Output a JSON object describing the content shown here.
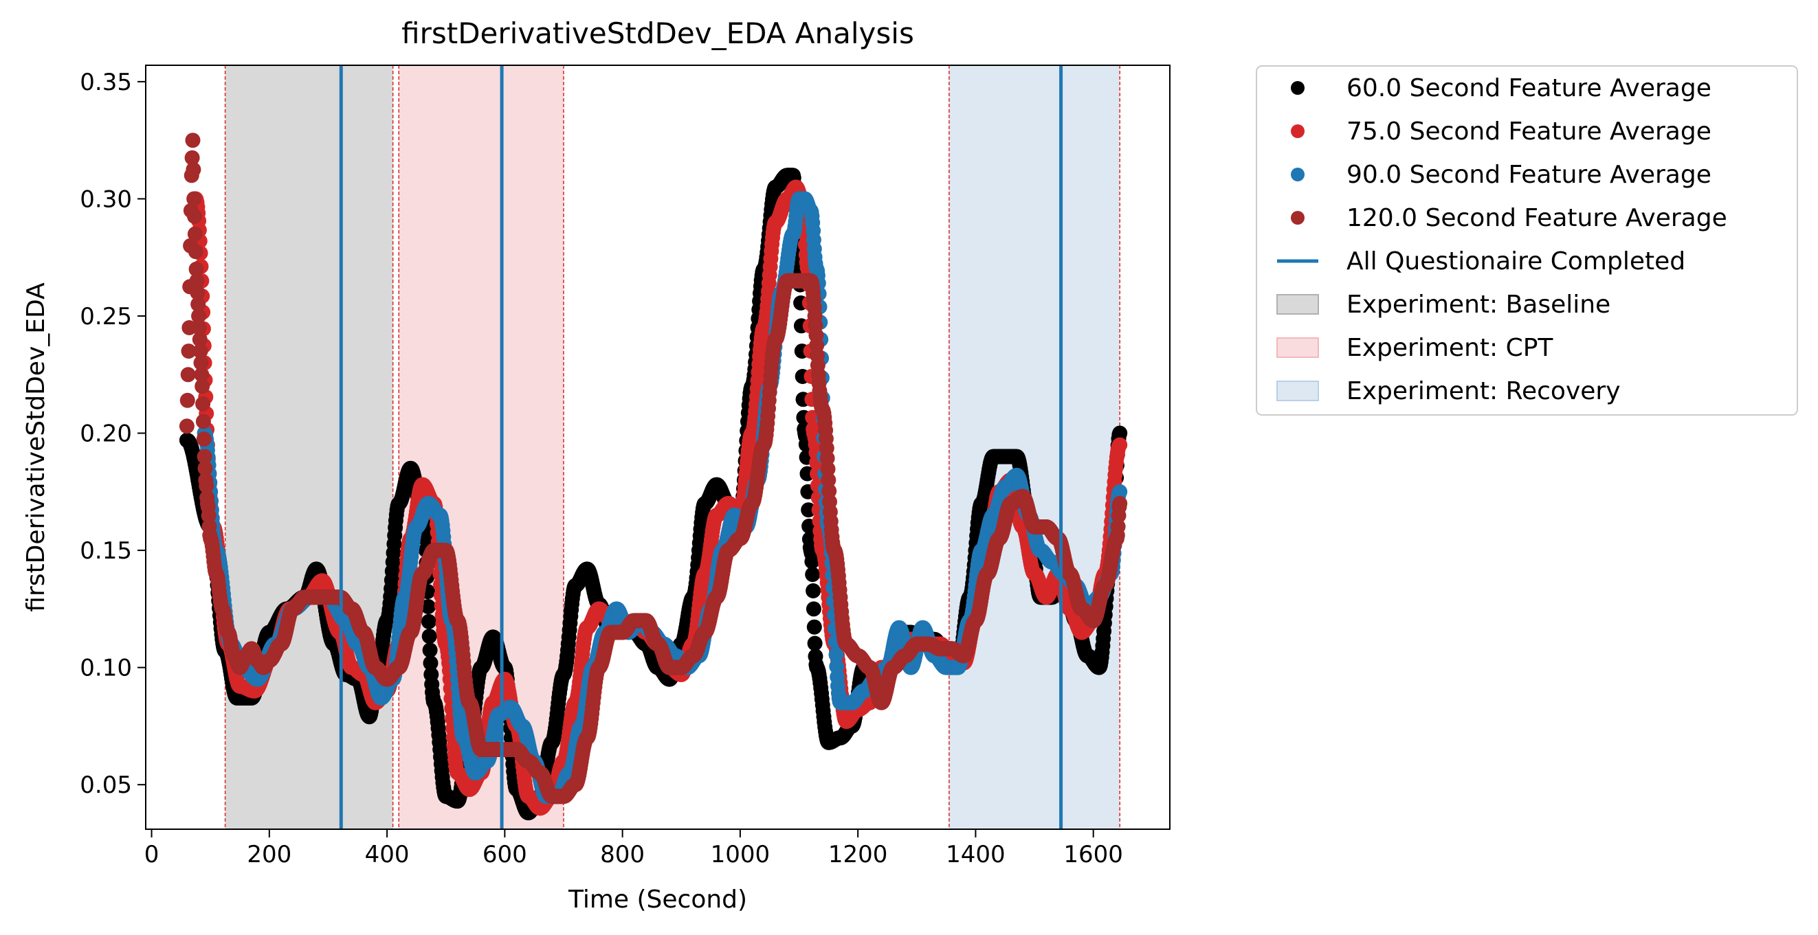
{
  "chart_data": {
    "type": "scatter",
    "title": "firstDerivativeStdDev_EDA Analysis",
    "xlabel": "Time (Second)",
    "ylabel": "firstDerivativeStdDev_EDA",
    "xlim": [
      -10,
      1730
    ],
    "ylim": [
      0.031,
      0.357
    ],
    "x_ticks": [
      0,
      200,
      400,
      600,
      800,
      1000,
      1200,
      1400,
      1600
    ],
    "y_ticks": [
      0.05,
      0.1,
      0.15,
      0.2,
      0.25,
      0.3,
      0.35
    ],
    "grid": false,
    "legend_position": "outside-right-top",
    "series": [
      {
        "name": "60.0 Second Feature Average",
        "color": "#000000",
        "x": [
          60,
          100,
          125,
          145,
          170,
          200,
          230,
          260,
          280,
          310,
          330,
          350,
          370,
          380,
          400,
          420,
          440,
          460,
          480,
          500,
          520,
          540,
          560,
          580,
          600,
          620,
          640,
          660,
          680,
          700,
          720,
          740,
          760,
          780,
          800,
          820,
          840,
          860,
          880,
          900,
          920,
          940,
          960,
          980,
          1000,
          1020,
          1040,
          1060,
          1080,
          1090,
          1100,
          1110,
          1120,
          1130,
          1150,
          1170,
          1190,
          1210,
          1230,
          1250,
          1270,
          1290,
          1310,
          1330,
          1350,
          1370,
          1390,
          1410,
          1430,
          1450,
          1470,
          1490,
          1510,
          1530,
          1550,
          1570,
          1590,
          1610,
          1630,
          1645
        ],
        "y": [
          0.197,
          0.16,
          0.107,
          0.087,
          0.087,
          0.115,
          0.125,
          0.13,
          0.142,
          0.11,
          0.097,
          0.095,
          0.079,
          0.09,
          0.12,
          0.17,
          0.185,
          0.167,
          0.085,
          0.045,
          0.043,
          0.07,
          0.1,
          0.113,
          0.1,
          0.048,
          0.038,
          0.045,
          0.068,
          0.097,
          0.135,
          0.142,
          0.127,
          0.115,
          0.12,
          0.115,
          0.11,
          0.1,
          0.095,
          0.11,
          0.13,
          0.17,
          0.178,
          0.17,
          0.165,
          0.22,
          0.27,
          0.305,
          0.31,
          0.31,
          0.27,
          0.2,
          0.15,
          0.1,
          0.068,
          0.07,
          0.075,
          0.1,
          0.09,
          0.1,
          0.115,
          0.115,
          0.11,
          0.112,
          0.105,
          0.1,
          0.13,
          0.17,
          0.19,
          0.19,
          0.19,
          0.165,
          0.13,
          0.13,
          0.14,
          0.12,
          0.105,
          0.1,
          0.145,
          0.2
        ]
      },
      {
        "name": "75.0 Second Feature Average",
        "color": "#d62728",
        "x": [
          75,
          105,
          130,
          150,
          175,
          205,
          235,
          265,
          290,
          320,
          340,
          360,
          380,
          400,
          420,
          440,
          460,
          480,
          500,
          520,
          540,
          560,
          580,
          600,
          620,
          640,
          660,
          680,
          700,
          720,
          740,
          760,
          780,
          800,
          820,
          840,
          860,
          880,
          900,
          920,
          940,
          960,
          980,
          1000,
          1020,
          1040,
          1060,
          1080,
          1095,
          1105,
          1115,
          1125,
          1140,
          1160,
          1180,
          1200,
          1220,
          1240,
          1260,
          1280,
          1300,
          1320,
          1340,
          1360,
          1380,
          1400,
          1420,
          1440,
          1460,
          1480,
          1500,
          1520,
          1540,
          1560,
          1580,
          1600,
          1620,
          1645
        ],
        "y": [
          0.3,
          0.16,
          0.11,
          0.092,
          0.09,
          0.105,
          0.125,
          0.13,
          0.137,
          0.115,
          0.1,
          0.097,
          0.085,
          0.09,
          0.11,
          0.155,
          0.178,
          0.17,
          0.11,
          0.055,
          0.048,
          0.055,
          0.085,
          0.095,
          0.075,
          0.045,
          0.04,
          0.045,
          0.06,
          0.085,
          0.117,
          0.125,
          0.12,
          0.118,
          0.12,
          0.115,
          0.11,
          0.1,
          0.097,
          0.11,
          0.14,
          0.165,
          0.17,
          0.165,
          0.2,
          0.245,
          0.29,
          0.3,
          0.305,
          0.3,
          0.27,
          0.2,
          0.15,
          0.11,
          0.077,
          0.082,
          0.085,
          0.1,
          0.1,
          0.112,
          0.112,
          0.11,
          0.11,
          0.105,
          0.102,
          0.12,
          0.15,
          0.175,
          0.18,
          0.16,
          0.14,
          0.13,
          0.14,
          0.125,
          0.115,
          0.12,
          0.14,
          0.195
        ]
      },
      {
        "name": "90.0 Second Feature Average",
        "color": "#1f77b4",
        "x": [
          90,
          110,
          135,
          155,
          180,
          210,
          240,
          270,
          300,
          330,
          350,
          370,
          390,
          410,
          430,
          450,
          470,
          490,
          510,
          530,
          550,
          570,
          590,
          610,
          630,
          650,
          670,
          690,
          710,
          730,
          750,
          770,
          790,
          810,
          830,
          850,
          870,
          890,
          910,
          930,
          950,
          970,
          990,
          1010,
          1030,
          1050,
          1070,
          1090,
          1100,
          1110,
          1120,
          1130,
          1150,
          1170,
          1190,
          1210,
          1230,
          1250,
          1270,
          1290,
          1310,
          1330,
          1350,
          1370,
          1390,
          1410,
          1430,
          1450,
          1470,
          1490,
          1510,
          1530,
          1550,
          1570,
          1590,
          1610,
          1630,
          1645
        ],
        "y": [
          0.2,
          0.15,
          0.11,
          0.1,
          0.095,
          0.11,
          0.125,
          0.13,
          0.13,
          0.12,
          0.11,
          0.1,
          0.087,
          0.095,
          0.13,
          0.16,
          0.17,
          0.165,
          0.12,
          0.07,
          0.055,
          0.06,
          0.08,
          0.083,
          0.075,
          0.06,
          0.045,
          0.045,
          0.055,
          0.075,
          0.1,
          0.115,
          0.125,
          0.115,
          0.12,
          0.115,
          0.11,
          0.105,
          0.1,
          0.105,
          0.125,
          0.15,
          0.165,
          0.16,
          0.18,
          0.22,
          0.26,
          0.285,
          0.3,
          0.3,
          0.295,
          0.27,
          0.16,
          0.085,
          0.085,
          0.09,
          0.095,
          0.1,
          0.117,
          0.1,
          0.117,
          0.105,
          0.1,
          0.1,
          0.12,
          0.15,
          0.165,
          0.177,
          0.182,
          0.165,
          0.15,
          0.145,
          0.14,
          0.135,
          0.125,
          0.13,
          0.14,
          0.175
        ]
      },
      {
        "name": "120.0 Second Feature Average",
        "color": "#a52a2a",
        "x": [
          60,
          62,
          64,
          66,
          68,
          70,
          72,
          74,
          76,
          78,
          80,
          82,
          84,
          86,
          88,
          90,
          92,
          95,
          100,
          110,
          120,
          130,
          140,
          150,
          160,
          170,
          180,
          190,
          200,
          220,
          240,
          260,
          280,
          300,
          320,
          340,
          360,
          380,
          400,
          420,
          440,
          460,
          480,
          500,
          520,
          540,
          560,
          580,
          600,
          620,
          640,
          660,
          680,
          700,
          720,
          740,
          760,
          780,
          800,
          820,
          840,
          860,
          880,
          900,
          920,
          940,
          960,
          980,
          1000,
          1020,
          1040,
          1060,
          1080,
          1100,
          1120,
          1140,
          1160,
          1180,
          1200,
          1220,
          1240,
          1260,
          1280,
          1300,
          1320,
          1340,
          1360,
          1380,
          1400,
          1420,
          1440,
          1460,
          1480,
          1500,
          1520,
          1540,
          1560,
          1580,
          1600,
          1620,
          1640,
          1645
        ],
        "y": [
          0.203,
          0.225,
          0.245,
          0.28,
          0.31,
          0.325,
          0.3,
          0.285,
          0.27,
          0.26,
          0.25,
          0.24,
          0.23,
          0.22,
          0.205,
          0.19,
          0.18,
          0.17,
          0.155,
          0.14,
          0.125,
          0.115,
          0.105,
          0.1,
          0.105,
          0.108,
          0.103,
          0.1,
          0.103,
          0.11,
          0.125,
          0.13,
          0.13,
          0.13,
          0.13,
          0.125,
          0.115,
          0.1,
          0.095,
          0.1,
          0.115,
          0.14,
          0.15,
          0.15,
          0.12,
          0.085,
          0.065,
          0.065,
          0.065,
          0.065,
          0.06,
          0.055,
          0.045,
          0.045,
          0.05,
          0.07,
          0.1,
          0.115,
          0.115,
          0.12,
          0.12,
          0.11,
          0.1,
          0.1,
          0.105,
          0.115,
          0.13,
          0.15,
          0.155,
          0.17,
          0.195,
          0.24,
          0.265,
          0.265,
          0.265,
          0.21,
          0.15,
          0.11,
          0.105,
          0.1,
          0.085,
          0.1,
          0.105,
          0.11,
          0.11,
          0.108,
          0.108,
          0.105,
          0.12,
          0.14,
          0.155,
          0.17,
          0.173,
          0.16,
          0.16,
          0.155,
          0.14,
          0.125,
          0.12,
          0.135,
          0.155,
          0.17
        ]
      }
    ],
    "vertical_lines": {
      "name": "All Questionaire Completed",
      "color": "#1f77b4",
      "x": [
        322,
        595,
        1545
      ]
    },
    "spans": [
      {
        "name": "Experiment: Baseline",
        "start": 125,
        "end": 410,
        "color": "#d9d9d9",
        "edge_color": "#b0b0b0"
      },
      {
        "name": "Experiment: CPT",
        "start": 420,
        "end": 700,
        "color": "#f8dcde",
        "edge_color": "#f2b9bd"
      },
      {
        "name": "Experiment: Recovery",
        "start": 1355,
        "end": 1645,
        "color": "#dde8f2",
        "edge_color": "#b9d0e6"
      }
    ],
    "span_boundary_color": "#d62728"
  }
}
